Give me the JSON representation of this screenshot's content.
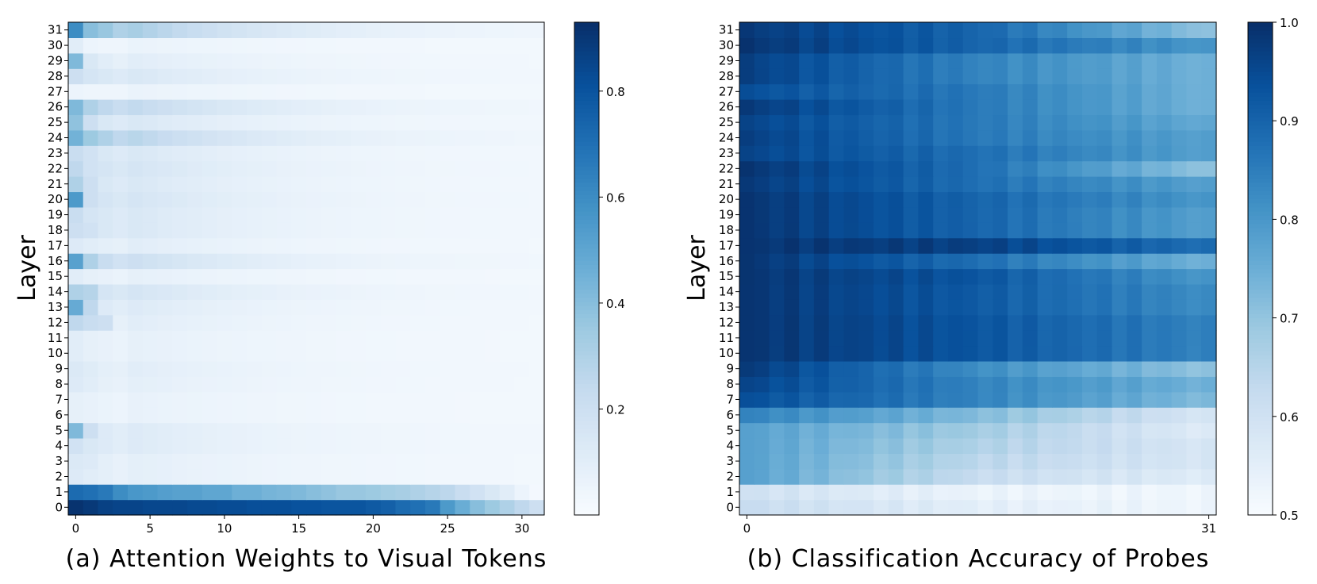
{
  "chart_data": [
    {
      "type": "heatmap",
      "caption": "(a) Attention Weights to Visual Tokens",
      "ylabel": "Layer",
      "x_tick_labels": [
        "0",
        "5",
        "10",
        "15",
        "20",
        "25",
        "30"
      ],
      "x_tick_values": [
        0,
        5,
        10,
        15,
        20,
        25,
        30
      ],
      "n_cols": 32,
      "n_rows": 32,
      "colorbar": {
        "vmin": 0.0,
        "vmax": 0.93,
        "ticks": [
          "0.2",
          "0.4",
          "0.6",
          "0.8"
        ],
        "tick_values": [
          0.2,
          0.4,
          0.6,
          0.8
        ]
      },
      "colormap": "Blues",
      "row0": [
        0.92,
        0.9,
        0.87,
        0.86,
        0.86,
        0.85,
        0.85,
        0.85,
        0.84,
        0.84,
        0.83,
        0.83,
        0.82,
        0.82,
        0.82,
        0.81,
        0.81,
        0.8,
        0.8,
        0.8,
        0.78,
        0.76,
        0.72,
        0.7,
        0.67,
        0.55,
        0.47,
        0.4,
        0.35,
        0.3,
        0.25,
        0.2
      ],
      "row1": [
        0.72,
        0.7,
        0.67,
        0.6,
        0.56,
        0.55,
        0.53,
        0.52,
        0.52,
        0.5,
        0.5,
        0.46,
        0.46,
        0.44,
        0.43,
        0.42,
        0.4,
        0.38,
        0.36,
        0.36,
        0.35,
        0.33,
        0.32,
        0.3,
        0.28,
        0.26,
        0.22,
        0.18,
        0.14,
        0.1,
        0.05,
        0.02
      ],
      "rows_first_cells": {
        "2": [
          0.12,
          0.1,
          0.09,
          0.07
        ],
        "3": [
          0.13,
          0.12,
          0.09,
          0.07
        ],
        "4": [
          0.18,
          0.14,
          0.12,
          0.1
        ],
        "5": [
          0.42,
          0.2,
          0.12,
          0.1
        ],
        "6": [
          0.08,
          0.07,
          0.06,
          0.05
        ],
        "7": [
          0.08,
          0.07,
          0.06,
          0.05
        ],
        "8": [
          0.12,
          0.1,
          0.08,
          0.07
        ],
        "9": [
          0.13,
          0.11,
          0.09,
          0.08
        ],
        "10": [
          0.1,
          0.08,
          0.07,
          0.06
        ],
        "11": [
          0.1,
          0.08,
          0.07,
          0.06
        ],
        "12": [
          0.25,
          0.22,
          0.2,
          0.08
        ],
        "13": [
          0.48,
          0.25,
          0.12,
          0.1
        ],
        "14": [
          0.3,
          0.28,
          0.16,
          0.14
        ],
        "15": [
          0.1,
          0.08,
          0.07,
          0.06
        ],
        "16": [
          0.52,
          0.3,
          0.22,
          0.18
        ],
        "17": [
          0.12,
          0.1,
          0.09,
          0.08
        ],
        "18": [
          0.2,
          0.18,
          0.14,
          0.12
        ],
        "19": [
          0.22,
          0.16,
          0.14,
          0.12
        ],
        "20": [
          0.55,
          0.2,
          0.16,
          0.14
        ],
        "21": [
          0.3,
          0.2,
          0.14,
          0.12
        ],
        "22": [
          0.25,
          0.18,
          0.16,
          0.14
        ],
        "23": [
          0.22,
          0.18,
          0.14,
          0.12
        ],
        "24": [
          0.45,
          0.35,
          0.3,
          0.25
        ],
        "25": [
          0.38,
          0.2,
          0.14,
          0.12
        ],
        "26": [
          0.42,
          0.3,
          0.25,
          0.22
        ],
        "27": [
          0.05,
          0.04,
          0.04,
          0.04
        ],
        "28": [
          0.2,
          0.16,
          0.14,
          0.12
        ],
        "29": [
          0.42,
          0.14,
          0.1,
          0.08
        ],
        "30": [
          0.1,
          0.05,
          0.04,
          0.04
        ],
        "31": [
          0.6,
          0.4,
          0.36,
          0.3
        ]
      }
    },
    {
      "type": "heatmap",
      "caption": "(b) Classification Accuracy of Probes",
      "ylabel": "Layer",
      "x_tick_labels": [
        "0",
        "31"
      ],
      "x_tick_values": [
        0,
        31
      ],
      "n_cols": 32,
      "n_rows": 32,
      "colorbar": {
        "vmin": 0.5,
        "vmax": 1.0,
        "ticks": [
          "0.5",
          "0.6",
          "0.7",
          "0.8",
          "0.9",
          "1.0"
        ],
        "tick_values": [
          0.5,
          0.6,
          0.7,
          0.8,
          0.9,
          1.0
        ]
      },
      "colormap": "Blues",
      "row_profiles": {
        "0": [
          0.62,
          0.55,
          0.52
        ],
        "1": [
          0.6,
          0.53,
          0.52
        ],
        "2": [
          0.78,
          0.62,
          0.56
        ],
        "3": [
          0.78,
          0.64,
          0.58
        ],
        "4": [
          0.78,
          0.66,
          0.58
        ],
        "5": [
          0.78,
          0.68,
          0.56
        ],
        "6": [
          0.84,
          0.72,
          0.58
        ],
        "7": [
          0.94,
          0.84,
          0.72
        ],
        "8": [
          0.96,
          0.84,
          0.74
        ],
        "9": [
          0.98,
          0.82,
          0.7
        ],
        "10": [
          0.99,
          0.93,
          0.84
        ],
        "11": [
          0.99,
          0.93,
          0.84
        ],
        "12": [
          0.99,
          0.93,
          0.84
        ],
        "13": [
          0.99,
          0.92,
          0.82
        ],
        "14": [
          0.99,
          0.92,
          0.82
        ],
        "15": [
          0.99,
          0.93,
          0.8
        ],
        "16": [
          0.99,
          0.88,
          0.74
        ],
        "17": [
          0.99,
          0.97,
          0.88
        ],
        "18": [
          0.99,
          0.9,
          0.78
        ],
        "19": [
          0.99,
          0.9,
          0.78
        ],
        "20": [
          0.99,
          0.9,
          0.8
        ],
        "21": [
          0.98,
          0.88,
          0.78
        ],
        "22": [
          0.99,
          0.88,
          0.7
        ],
        "23": [
          0.96,
          0.88,
          0.78
        ],
        "24": [
          0.97,
          0.86,
          0.78
        ],
        "25": [
          0.96,
          0.86,
          0.76
        ],
        "26": [
          0.98,
          0.86,
          0.74
        ],
        "27": [
          0.94,
          0.86,
          0.74
        ],
        "28": [
          0.97,
          0.84,
          0.74
        ],
        "29": [
          0.97,
          0.84,
          0.74
        ],
        "30": [
          0.99,
          0.9,
          0.8
        ],
        "31": [
          0.98,
          0.9,
          0.7
        ]
      }
    }
  ]
}
